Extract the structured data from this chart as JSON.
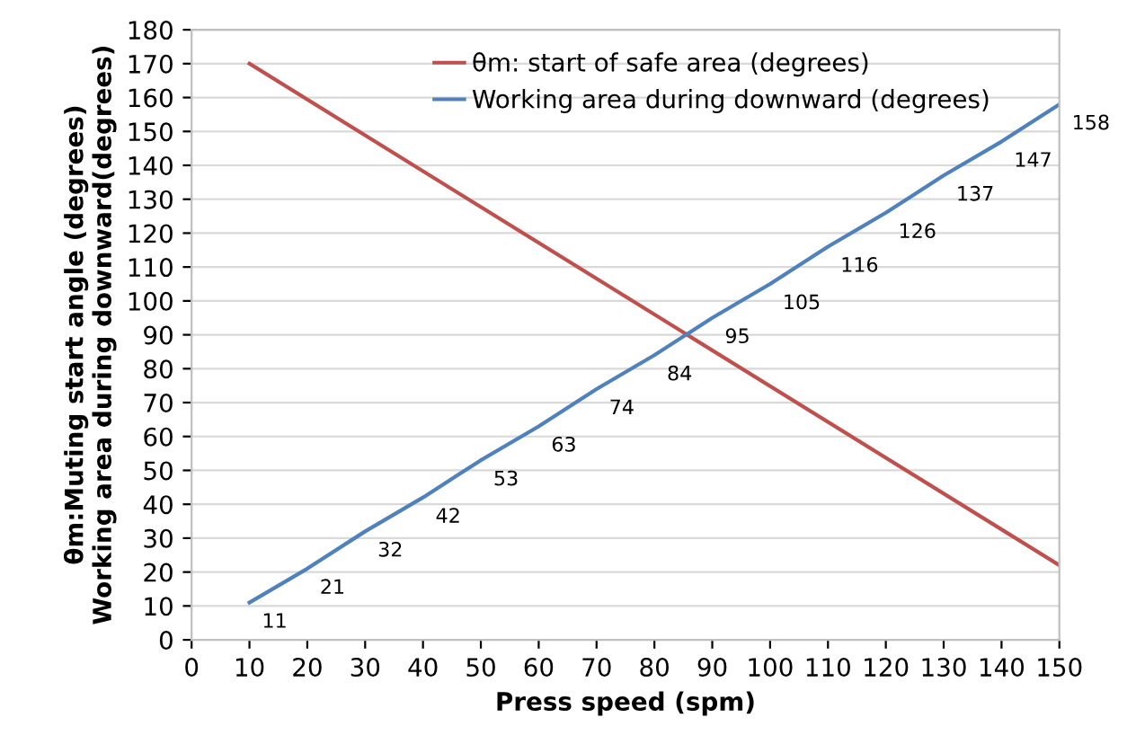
{
  "chart_data": {
    "type": "line",
    "xlabel": "Press speed (spm)",
    "ylabel": "θm:Muting start angle (degrees)\nWorking area during downward(degrees)",
    "series": [
      {
        "name": "θm: start of safe area (degrees)",
        "color": "#c0504d",
        "x": [
          10,
          150
        ],
        "values": [
          170,
          22
        ]
      },
      {
        "name": "Working area during downward (degrees)",
        "color": "#4f81bd",
        "x": [
          10,
          20,
          30,
          40,
          50,
          60,
          70,
          80,
          90,
          100,
          110,
          120,
          130,
          140,
          150
        ],
        "values": [
          11,
          21,
          32,
          42,
          53,
          63,
          74,
          84,
          95,
          105,
          116,
          126,
          137,
          147,
          158
        ],
        "value_labels": [
          "11",
          "21",
          "32",
          "42",
          "53",
          "63",
          "74",
          "84",
          "95",
          "105",
          "116",
          "126",
          "137",
          "147",
          "158"
        ]
      }
    ],
    "xlim": [
      0,
      150
    ],
    "xticks": [
      0,
      10,
      20,
      30,
      40,
      50,
      60,
      70,
      80,
      90,
      100,
      110,
      120,
      130,
      140,
      150
    ],
    "ylim": [
      0,
      180
    ],
    "yticks": [
      0,
      10,
      20,
      30,
      40,
      50,
      60,
      70,
      80,
      90,
      100,
      110,
      120,
      130,
      140,
      150,
      160,
      170,
      180
    ],
    "grid": "y",
    "legend": "top",
    "marker": "none",
    "line_style": "solid"
  }
}
